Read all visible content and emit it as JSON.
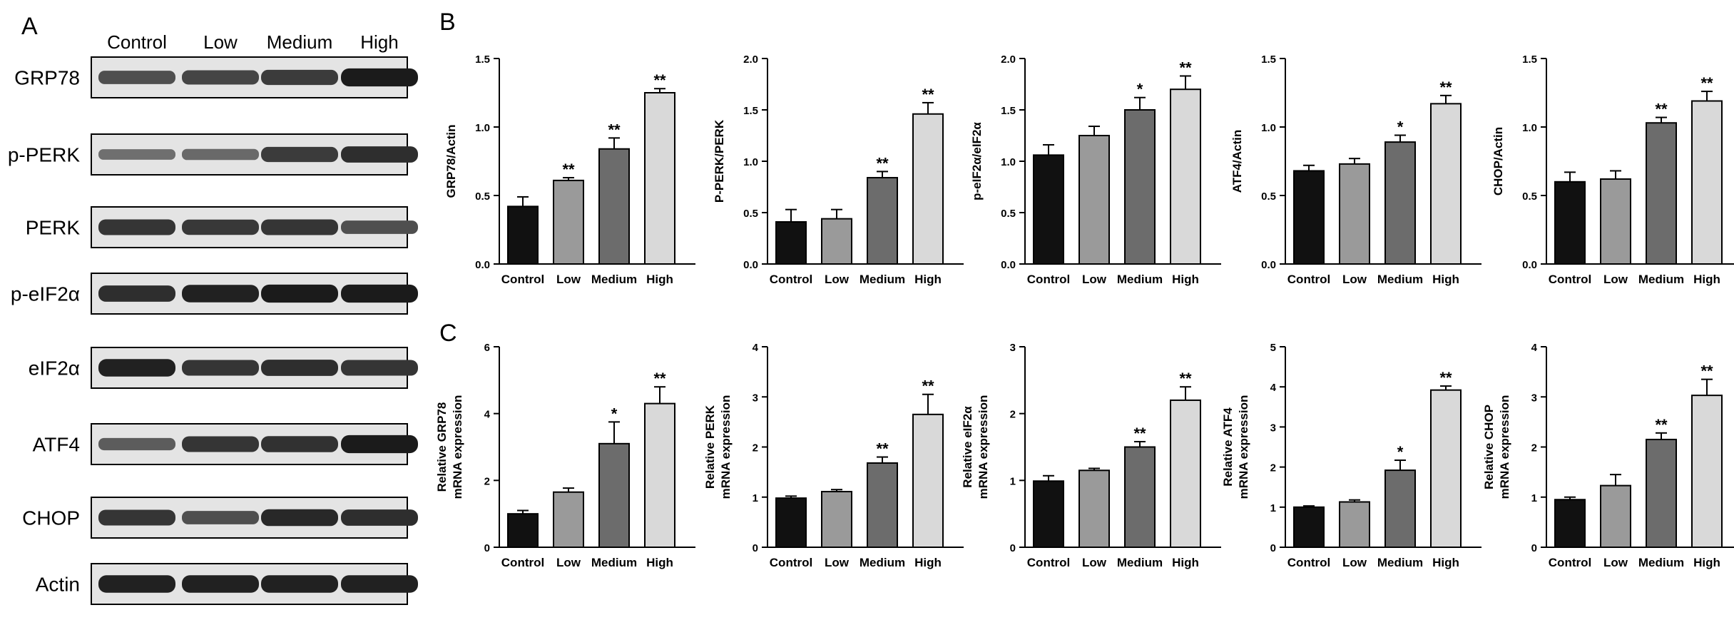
{
  "panels": {
    "a": "A",
    "b": "B",
    "c": "C"
  },
  "colors": {
    "control": "#111111",
    "low": "#9a9a9a",
    "medium": "#6c6c6c",
    "high": "#d9d9d9",
    "axis": "#000000"
  },
  "blot": {
    "lanes": [
      "Control",
      "Low",
      "Medium",
      "High"
    ],
    "rows": [
      {
        "label": "GRP78",
        "intensity": [
          0.55,
          0.62,
          0.7,
          0.95
        ]
      },
      {
        "label": "p-PERK",
        "intensity": [
          0.3,
          0.35,
          0.7,
          0.8
        ]
      },
      {
        "label": "PERK",
        "intensity": [
          0.75,
          0.72,
          0.75,
          0.55
        ]
      },
      {
        "label": "p-eIF2α",
        "intensity": [
          0.8,
          0.9,
          0.95,
          0.95
        ]
      },
      {
        "label": "eIF2α",
        "intensity": [
          0.9,
          0.75,
          0.8,
          0.75
        ]
      },
      {
        "label": "ATF4",
        "intensity": [
          0.45,
          0.75,
          0.78,
          0.95
        ]
      },
      {
        "label": "CHOP",
        "intensity": [
          0.75,
          0.55,
          0.85,
          0.8
        ]
      },
      {
        "label": "Actin",
        "intensity": [
          0.9,
          0.9,
          0.9,
          0.9
        ]
      }
    ]
  },
  "chart_data": [
    {
      "type": "bar",
      "panel": "B",
      "categories": [
        "Control",
        "Low",
        "Medium",
        "High"
      ],
      "ylabel": "GRP78/Actin",
      "ylim": [
        0,
        1.5
      ],
      "ticks": [
        "0.0",
        "0.5",
        "1.0",
        "1.5"
      ],
      "values": [
        0.42,
        0.61,
        0.84,
        1.25
      ],
      "errors": [
        0.07,
        0.02,
        0.08,
        0.03
      ],
      "sig": [
        "",
        "**",
        "**",
        "**"
      ]
    },
    {
      "type": "bar",
      "panel": "B",
      "categories": [
        "Control",
        "Low",
        "Medium",
        "High"
      ],
      "ylabel": "P-PERK/PERK",
      "ylim": [
        0,
        2.0
      ],
      "ticks": [
        "0.0",
        "0.5",
        "1.0",
        "1.5",
        "2.0"
      ],
      "values": [
        0.41,
        0.44,
        0.84,
        1.46
      ],
      "errors": [
        0.12,
        0.09,
        0.06,
        0.11
      ],
      "sig": [
        "",
        "",
        "**",
        "**"
      ]
    },
    {
      "type": "bar",
      "panel": "B",
      "categories": [
        "Control",
        "Low",
        "Medium",
        "High"
      ],
      "ylabel": "p-eIF2α/eIF2α",
      "ylim": [
        0,
        2.0
      ],
      "ticks": [
        "0.0",
        "0.5",
        "1.0",
        "1.5",
        "2.0"
      ],
      "values": [
        1.06,
        1.25,
        1.5,
        1.7
      ],
      "errors": [
        0.1,
        0.09,
        0.12,
        0.13
      ],
      "sig": [
        "",
        "",
        "*",
        "**"
      ]
    },
    {
      "type": "bar",
      "panel": "B",
      "categories": [
        "Control",
        "Low",
        "Medium",
        "High"
      ],
      "ylabel": "ATF4/Actin",
      "ylim": [
        0,
        1.5
      ],
      "ticks": [
        "0.0",
        "0.5",
        "1.0",
        "1.5"
      ],
      "values": [
        0.68,
        0.73,
        0.89,
        1.17
      ],
      "errors": [
        0.04,
        0.04,
        0.05,
        0.06
      ],
      "sig": [
        "",
        "",
        "*",
        "**"
      ]
    },
    {
      "type": "bar",
      "panel": "B",
      "categories": [
        "Control",
        "Low",
        "Medium",
        "High"
      ],
      "ylabel": "CHOP/Actin",
      "ylim": [
        0,
        1.5
      ],
      "ticks": [
        "0.0",
        "0.5",
        "1.0",
        "1.5"
      ],
      "values": [
        0.6,
        0.62,
        1.03,
        1.19
      ],
      "errors": [
        0.07,
        0.06,
        0.04,
        0.07
      ],
      "sig": [
        "",
        "",
        "**",
        "**"
      ]
    },
    {
      "type": "bar",
      "panel": "C",
      "categories": [
        "Control",
        "Low",
        "Medium",
        "High"
      ],
      "ylabel": "Relative GRP78",
      "ylabel2": "mRNA expression",
      "ylim": [
        0,
        6
      ],
      "ticks": [
        "0",
        "2",
        "4",
        "6"
      ],
      "values": [
        1.0,
        1.65,
        3.1,
        4.3
      ],
      "errors": [
        0.1,
        0.12,
        0.65,
        0.5
      ],
      "sig": [
        "",
        "",
        "*",
        "**"
      ]
    },
    {
      "type": "bar",
      "panel": "C",
      "categories": [
        "Control",
        "Low",
        "Medium",
        "High"
      ],
      "ylabel": "Relative PERK",
      "ylabel2": "mRNA expression",
      "ylim": [
        0,
        4
      ],
      "ticks": [
        "0",
        "1",
        "2",
        "3",
        "4"
      ],
      "values": [
        0.98,
        1.11,
        1.68,
        2.65
      ],
      "errors": [
        0.04,
        0.04,
        0.12,
        0.4
      ],
      "sig": [
        "",
        "",
        "**",
        "**"
      ]
    },
    {
      "type": "bar",
      "panel": "C",
      "categories": [
        "Control",
        "Low",
        "Medium",
        "High"
      ],
      "ylabel": "Relative eIF2α",
      "ylabel2": "mRNA expression",
      "ylim": [
        0,
        3
      ],
      "ticks": [
        "0",
        "1",
        "2",
        "3"
      ],
      "values": [
        0.99,
        1.15,
        1.5,
        2.2
      ],
      "errors": [
        0.08,
        0.03,
        0.08,
        0.2
      ],
      "sig": [
        "",
        "",
        "**",
        "**"
      ]
    },
    {
      "type": "bar",
      "panel": "C",
      "categories": [
        "Control",
        "Low",
        "Medium",
        "High"
      ],
      "ylabel": "Relative ATF4",
      "ylabel2": "mRNA expression",
      "ylim": [
        0,
        5
      ],
      "ticks": [
        "0",
        "1",
        "2",
        "3",
        "4",
        "5"
      ],
      "values": [
        1.0,
        1.13,
        1.92,
        3.92
      ],
      "errors": [
        0.03,
        0.05,
        0.25,
        0.1
      ],
      "sig": [
        "",
        "",
        "*",
        "**"
      ]
    },
    {
      "type": "bar",
      "panel": "C",
      "categories": [
        "Control",
        "Low",
        "Medium",
        "High"
      ],
      "ylabel": "Relative CHOP",
      "ylabel2": "mRNA expression",
      "ylim": [
        0,
        4
      ],
      "ticks": [
        "0",
        "1",
        "2",
        "3",
        "4"
      ],
      "values": [
        0.95,
        1.23,
        2.15,
        3.03
      ],
      "errors": [
        0.05,
        0.22,
        0.13,
        0.32
      ],
      "sig": [
        "",
        "",
        "**",
        "**"
      ]
    }
  ]
}
